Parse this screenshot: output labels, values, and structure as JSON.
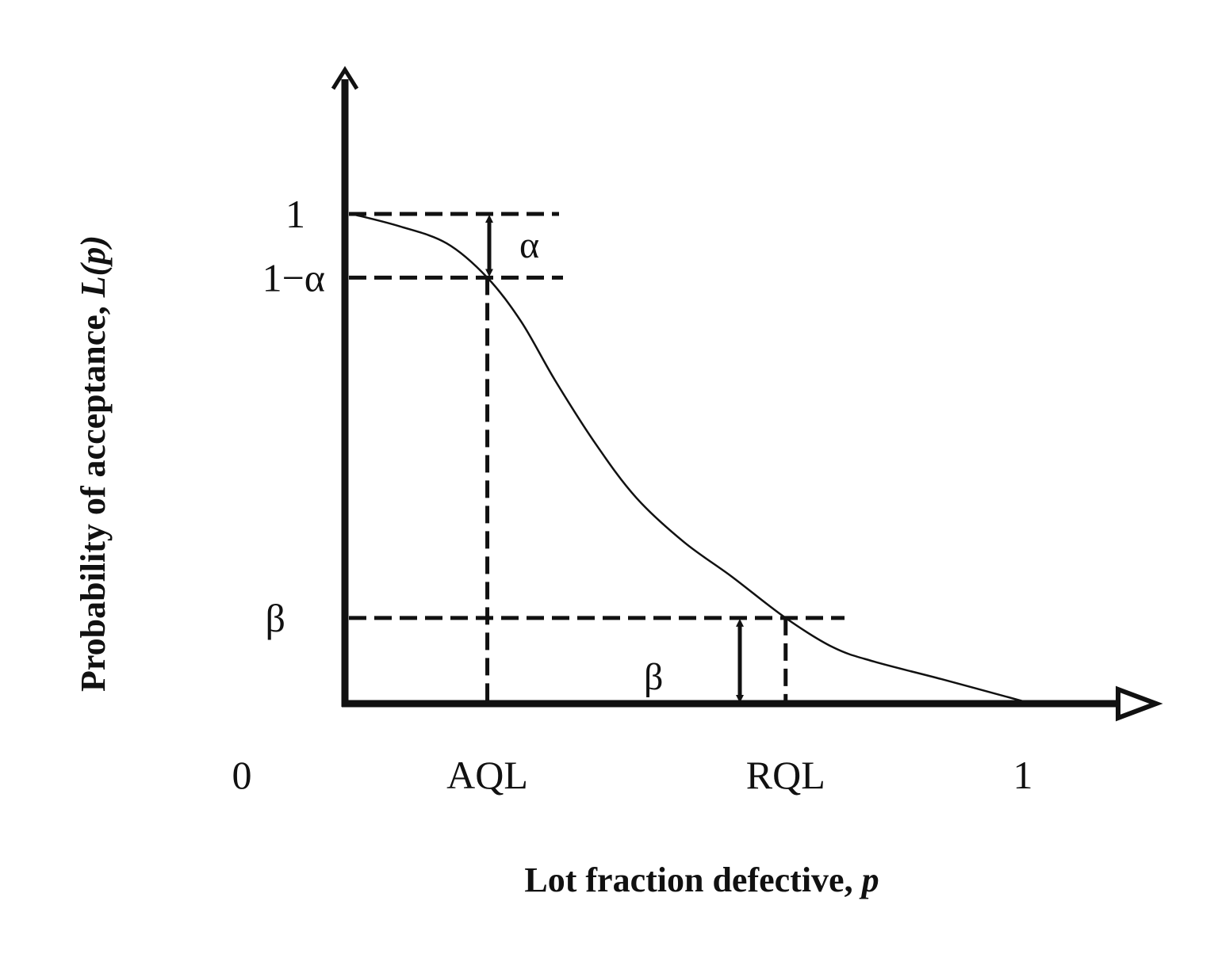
{
  "chart_data": {
    "type": "line",
    "title": "",
    "xlabel": "Lot fraction defective, ",
    "xlabel_var": "p",
    "ylabel": "Probability of acceptance, ",
    "ylabel_var": "L(p)",
    "xlim": [
      0,
      1
    ],
    "ylim": [
      0,
      1
    ],
    "grid": false,
    "x_ticks": [
      {
        "label": "0",
        "value": 0
      },
      {
        "label": "AQL",
        "value": 0.21
      },
      {
        "label": "RQL",
        "value": 0.65
      },
      {
        "label": "1",
        "value": 1
      }
    ],
    "y_ticks": [
      {
        "label": "1",
        "value": 1
      },
      {
        "label": "1−α",
        "value": 0.87
      },
      {
        "label": "β",
        "value": 0.175
      }
    ],
    "annotations": {
      "alpha": "α",
      "beta": "β"
    },
    "series": [
      {
        "x": [
          0.01,
          0.08,
          0.15,
          0.21,
          0.26,
          0.31,
          0.37,
          0.43,
          0.5,
          0.57,
          0.65,
          0.72,
          0.78,
          0.88,
          1.0
        ],
        "y": [
          1.0,
          0.975,
          0.94,
          0.87,
          0.78,
          0.66,
          0.53,
          0.42,
          0.33,
          0.26,
          0.175,
          0.115,
          0.086,
          0.05,
          0.005
        ]
      }
    ],
    "colors": {
      "ink": "#111111"
    }
  }
}
